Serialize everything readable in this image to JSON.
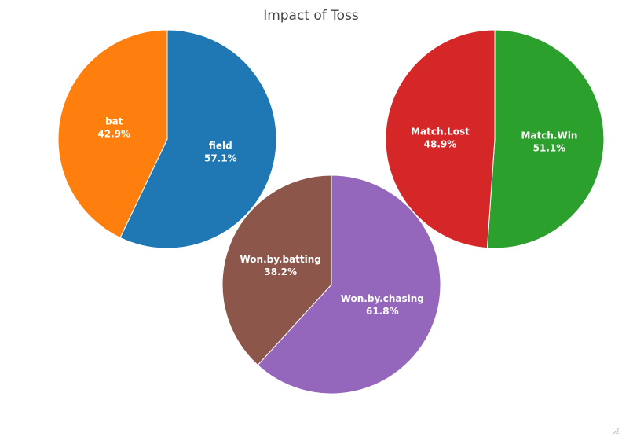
{
  "chart_data": {
    "title": "Impact of Toss",
    "type": "pie",
    "pies": [
      {
        "slices": [
          {
            "label": "field",
            "percent_text": "57.1%",
            "value": 57.1,
            "color": "#1f77b4"
          },
          {
            "label": "bat",
            "percent_text": "42.9%",
            "value": 42.9,
            "color": "#ff7f0e"
          }
        ]
      },
      {
        "slices": [
          {
            "label": "Match.Win",
            "percent_text": "51.1%",
            "value": 51.1,
            "color": "#2ca02c"
          },
          {
            "label": "Match.Lost",
            "percent_text": "48.9%",
            "value": 48.9,
            "color": "#d62728"
          }
        ]
      },
      {
        "slices": [
          {
            "label": "Won.by.chasing",
            "percent_text": "61.8%",
            "value": 61.8,
            "color": "#9467bd"
          },
          {
            "label": "Won.by.batting",
            "percent_text": "38.2%",
            "value": 38.2,
            "color": "#8c564b"
          }
        ]
      }
    ],
    "start": "top",
    "direction": "clockwise",
    "slice_border_color": "#ffffff"
  }
}
